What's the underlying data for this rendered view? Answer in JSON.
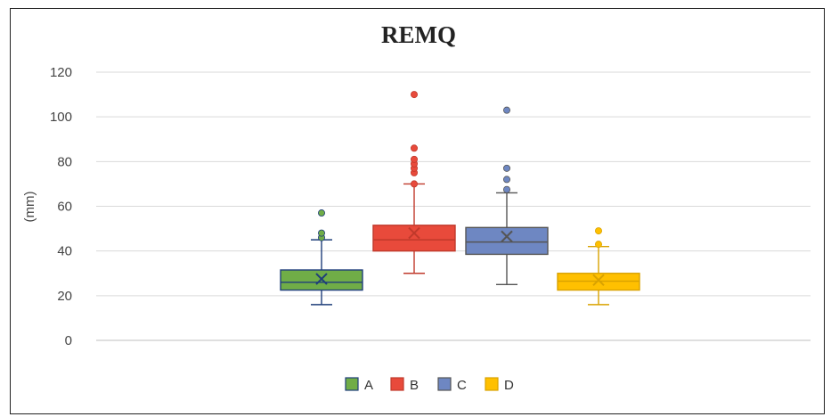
{
  "header_fragment": "",
  "chart_data": {
    "type": "box",
    "title": "REMQ",
    "xlabel": "",
    "ylabel": "(mm)",
    "ylim": [
      0,
      120
    ],
    "yticks": [
      0,
      20,
      40,
      60,
      80,
      100,
      120
    ],
    "grid": true,
    "legend_position": "bottom",
    "series": [
      {
        "name": "A",
        "color": "#70AD47",
        "stroke": "#1F3E7A",
        "min": 16,
        "q1": 22.5,
        "median": 26,
        "mean": 27.5,
        "q3": 31.5,
        "max": 45,
        "outliers": [
          46,
          48,
          57
        ]
      },
      {
        "name": "B",
        "color": "#E84A3B",
        "stroke": "#C0392B",
        "min": 30,
        "q1": 40,
        "median": 45,
        "mean": 48,
        "q3": 51.5,
        "max": 70,
        "outliers": [
          70,
          75,
          77,
          79,
          81,
          86,
          110
        ]
      },
      {
        "name": "C",
        "color": "#6E87C2",
        "stroke": "#555555",
        "min": 25,
        "q1": 38.5,
        "median": 44,
        "mean": 46.5,
        "q3": 50.5,
        "max": 66,
        "outliers": [
          67.5,
          72,
          77,
          103
        ]
      },
      {
        "name": "D",
        "color": "#FFC000",
        "stroke": "#D9A200",
        "min": 16,
        "q1": 22.5,
        "median": 26.5,
        "mean": 27,
        "q3": 30,
        "max": 42,
        "outliers": [
          43,
          49
        ]
      }
    ]
  }
}
